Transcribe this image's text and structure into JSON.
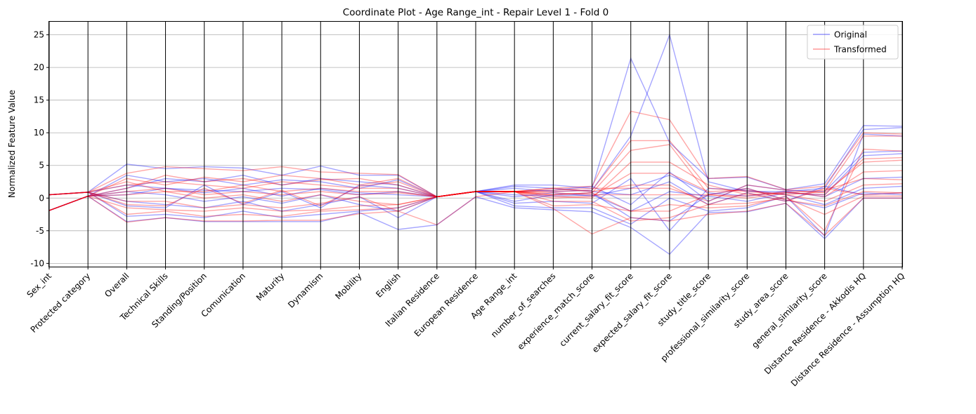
{
  "chart_data": {
    "type": "line",
    "subtype": "parallel-coordinates",
    "title": "Coordinate Plot - Age Range_int - Repair Level 1 - Fold 0",
    "ylabel": "Normalized Feature Value",
    "xlabel": "",
    "ylim": [
      -10.5,
      27
    ],
    "yticks": [
      -10,
      -5,
      0,
      5,
      10,
      15,
      20,
      25
    ],
    "grid": "horizontal",
    "legend_position": "top-right",
    "categories": [
      "Sex_int",
      "Protected category",
      "Overall",
      "Technical Skills",
      "Standing/Position",
      "Comunication",
      "Maturity",
      "Dynamism",
      "Mobility",
      "English",
      "Italian Residence",
      "European Residence",
      "Age Range_int",
      "number_of_searches",
      "experience_match_score",
      "current_salary_fit_score",
      "expected_salary_fit_score",
      "study_title_score",
      "professional_similarity_score",
      "study_area_score",
      "general_similarity_score",
      "Distance Residence - Akkodis HQ",
      "Distance Residence - Assumption HQ"
    ],
    "series": [
      {
        "name": "Original",
        "color": "#0000ff",
        "lines": [
          [
            0.5,
            0.9,
            5.2,
            4.5,
            4.8,
            4.6,
            3.5,
            4.9,
            3.5,
            3.5,
            0.2,
            1.0,
            2.0,
            2.0,
            1.5,
            21.4,
            8.5,
            3.0,
            3.2,
            1.3,
            2.2,
            11.1,
            11.0
          ],
          [
            -1.9,
            0.3,
            -3.6,
            -3.0,
            -3.6,
            -3.6,
            -3.6,
            -3.6,
            -2.2,
            -4.8,
            -4.1,
            0.2,
            -1.5,
            -1.8,
            -2.1,
            -4.5,
            -8.6,
            -2.2,
            -2.1,
            -0.8,
            -6.2,
            0.0,
            0.0
          ],
          [
            0.5,
            0.9,
            2.0,
            1.5,
            1.2,
            1.0,
            1.5,
            1.3,
            0.5,
            1.0,
            0.2,
            1.0,
            1.5,
            1.0,
            1.2,
            9.5,
            25.0,
            2.5,
            1.0,
            1.0,
            1.5,
            10.5,
            10.8
          ],
          [
            -1.9,
            0.3,
            1.0,
            0.5,
            -0.5,
            0.2,
            -0.8,
            0.5,
            -1.0,
            -2.0,
            0.2,
            1.0,
            0.5,
            0.3,
            0.5,
            -2.0,
            1.0,
            0.3,
            -0.5,
            0.8,
            0.5,
            6.5,
            6.8
          ],
          [
            0.5,
            0.9,
            -1.2,
            -1.5,
            2.0,
            -1.0,
            1.0,
            -1.5,
            2.0,
            1.5,
            0.2,
            1.0,
            -0.8,
            -0.5,
            -0.8,
            3.0,
            -5.0,
            1.5,
            1.2,
            0.5,
            -1.0,
            1.5,
            1.8
          ],
          [
            -1.9,
            0.3,
            3.5,
            2.5,
            3.0,
            2.0,
            2.8,
            2.5,
            1.5,
            2.8,
            0.2,
            1.0,
            1.8,
            1.5,
            1.0,
            0.5,
            2.5,
            -1.0,
            0.8,
            -0.5,
            1.8,
            0.5,
            0.8
          ],
          [
            0.5,
            0.9,
            -2.8,
            -2.5,
            -3.0,
            -2.0,
            -3.0,
            -2.5,
            -2.0,
            -1.5,
            0.2,
            1.0,
            -1.2,
            -1.5,
            -1.5,
            -4.0,
            0.0,
            -2.0,
            -1.5,
            0.3,
            -5.8,
            9.8,
            9.5
          ],
          [
            -1.9,
            0.3,
            0.5,
            1.5,
            0.8,
            1.5,
            0.3,
            1.5,
            0.8,
            0.5,
            0.2,
            1.0,
            0.2,
            0.8,
            0.3,
            1.5,
            3.5,
            0.8,
            0.3,
            1.0,
            0.2,
            3.0,
            3.2
          ],
          [
            0.5,
            0.9,
            -0.5,
            -1.0,
            -1.5,
            -0.5,
            -2.0,
            -1.0,
            0.2,
            -3.0,
            0.2,
            1.0,
            -0.5,
            0.5,
            0.8,
            -3.0,
            -3.5,
            0.5,
            1.5,
            -0.3,
            -1.5,
            0.8,
            0.5
          ],
          [
            -1.9,
            0.3,
            1.5,
            3.0,
            2.5,
            3.5,
            2.0,
            3.0,
            2.5,
            2.0,
            0.2,
            1.0,
            1.0,
            1.2,
            1.8,
            -1.0,
            4.0,
            -0.5,
            2.0,
            1.2,
            1.0,
            7.0,
            7.2
          ]
        ]
      },
      {
        "name": "Transformed",
        "color": "#ff0000",
        "lines": [
          [
            0.5,
            0.9,
            3.8,
            4.8,
            4.5,
            4.2,
            4.8,
            4.0,
            3.8,
            3.6,
            0.2,
            1.0,
            1.0,
            1.5,
            1.8,
            13.3,
            12.0,
            3.0,
            3.3,
            1.3,
            1.8,
            10.0,
            9.8
          ],
          [
            -1.9,
            0.3,
            -3.7,
            -3.0,
            -3.5,
            -3.5,
            -3.4,
            -3.4,
            -2.4,
            -2.0,
            -4.1,
            0.2,
            1.0,
            -1.6,
            -5.5,
            -3.0,
            -3.5,
            -2.5,
            -2.0,
            -0.8,
            -5.7,
            0.0,
            0.0
          ],
          [
            0.5,
            0.9,
            2.0,
            2.5,
            2.0,
            1.5,
            2.5,
            2.0,
            1.5,
            1.5,
            0.2,
            1.0,
            1.0,
            1.0,
            1.2,
            8.8,
            8.8,
            1.5,
            1.0,
            0.5,
            1.0,
            9.5,
            9.5
          ],
          [
            -1.9,
            0.3,
            0.5,
            1.0,
            0.0,
            0.5,
            -0.5,
            0.5,
            -0.5,
            -1.0,
            0.2,
            1.0,
            1.0,
            0.5,
            0.8,
            7.3,
            8.2,
            0.5,
            0.0,
            0.8,
            0.5,
            6.0,
            6.2
          ],
          [
            0.5,
            0.9,
            -1.0,
            -1.2,
            1.5,
            -0.8,
            1.2,
            -1.2,
            1.8,
            2.5,
            0.2,
            1.0,
            1.0,
            0.0,
            0.3,
            3.8,
            3.8,
            1.0,
            1.2,
            0.5,
            -0.5,
            2.0,
            2.2
          ],
          [
            -1.9,
            0.3,
            3.0,
            2.0,
            3.2,
            2.5,
            3.5,
            3.0,
            2.0,
            3.0,
            0.2,
            1.0,
            1.0,
            1.5,
            1.0,
            2.0,
            2.0,
            -1.0,
            0.8,
            -0.5,
            1.5,
            0.5,
            0.8
          ],
          [
            0.5,
            0.9,
            -2.5,
            -2.0,
            -2.8,
            -2.5,
            -2.8,
            -2.0,
            -1.8,
            -1.5,
            0.2,
            1.0,
            1.0,
            -1.2,
            -1.0,
            -2.0,
            -1.0,
            -1.5,
            -1.2,
            0.3,
            -5.0,
            7.5,
            7.2
          ],
          [
            -1.9,
            0.3,
            1.0,
            1.5,
            0.5,
            1.0,
            0.5,
            1.0,
            0.5,
            0.8,
            0.2,
            1.0,
            1.0,
            0.8,
            0.5,
            0.5,
            0.5,
            0.5,
            0.3,
            1.0,
            0.2,
            4.0,
            4.2
          ],
          [
            0.5,
            0.9,
            -0.5,
            -0.5,
            -1.5,
            -1.0,
            -1.5,
            -0.8,
            0.2,
            -2.0,
            0.2,
            1.0,
            1.0,
            0.5,
            0.8,
            -2.0,
            -2.0,
            0.5,
            1.5,
            -0.3,
            -1.2,
            1.0,
            0.8
          ],
          [
            -1.9,
            0.3,
            1.5,
            3.5,
            2.5,
            3.0,
            2.0,
            2.8,
            3.0,
            2.0,
            0.2,
            1.0,
            1.0,
            1.2,
            1.5,
            1.5,
            1.5,
            -0.5,
            2.0,
            1.2,
            0.8,
            5.5,
            5.8
          ],
          [
            0.5,
            0.9,
            2.5,
            1.0,
            1.0,
            2.0,
            1.0,
            1.5,
            1.0,
            1.0,
            0.2,
            1.0,
            1.0,
            0.3,
            0.0,
            5.5,
            5.5,
            2.0,
            0.5,
            0.8,
            1.2,
            3.0,
            2.8
          ],
          [
            -1.9,
            0.3,
            -1.5,
            -1.8,
            -2.0,
            -1.5,
            -2.0,
            -1.8,
            -1.2,
            -1.0,
            0.2,
            1.0,
            1.0,
            -0.5,
            -0.5,
            -3.5,
            -3.0,
            -1.0,
            -0.8,
            0.0,
            -2.5,
            0.3,
            0.3
          ]
        ]
      }
    ]
  }
}
